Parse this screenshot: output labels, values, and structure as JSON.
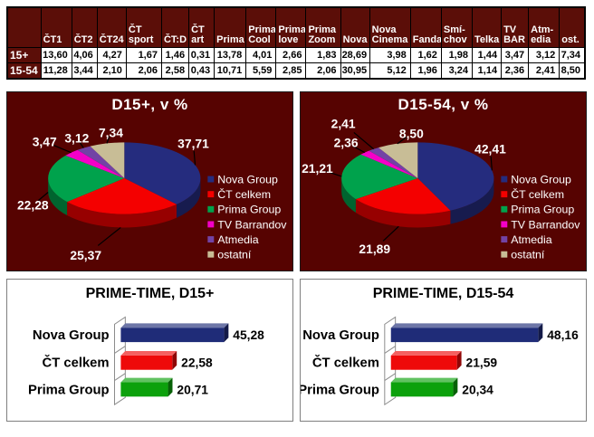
{
  "table": {
    "corner_label": "",
    "columns": [
      "ČT1",
      "ČT2",
      "ČT24",
      "ČT\nsport",
      "ČT:D",
      "ČT\nart",
      "Prima",
      "Prima\nCool",
      "Prima\nlove",
      "Prima\nZoom",
      "Nova",
      "Nova\nCinema",
      "Fanda",
      "Smí-\nchov",
      "Telka",
      "TV\nBAR",
      "Atm-\nedia",
      "ost."
    ],
    "rows": [
      {
        "label": "15+",
        "values": [
          "13,60",
          "4,06",
          "4,27",
          "1,67",
          "1,46",
          "0,31",
          "13,78",
          "4,01",
          "2,66",
          "1,83",
          "28,69",
          "3,98",
          "1,62",
          "1,98",
          "1,44",
          "3,47",
          "3,12",
          "7,34"
        ]
      },
      {
        "label": "15-54",
        "values": [
          "11,28",
          "3,44",
          "2,10",
          "2,06",
          "2,58",
          "0,43",
          "10,71",
          "5,59",
          "2,85",
          "2,06",
          "30,95",
          "5,12",
          "1,96",
          "3,24",
          "1,14",
          "2,36",
          "2,41",
          "8,50"
        ]
      }
    ],
    "colors": {
      "header_bg": "#5B0E08",
      "header_text": "#FFFFFF",
      "cell_bg": "#FFFFFF",
      "cell_text": "#000000",
      "border": "#000000"
    }
  },
  "chart_data": [
    {
      "type": "pie",
      "title": "D15+, v %",
      "legend_position": "right",
      "background": "#560301",
      "labels": [
        "Nova Group",
        "ČT celkem",
        "Prima Group",
        "TV Barrandov",
        "Atmedia",
        "ostatní"
      ],
      "values": [
        37.71,
        25.37,
        22.28,
        3.47,
        3.12,
        7.34
      ],
      "value_labels": [
        "37,71",
        "25,37",
        "22,28",
        "3,47",
        "3,12",
        "7,34"
      ],
      "colors": [
        "#252C7E",
        "#F40000",
        "#00A24C",
        "#F400C8",
        "#7243A5",
        "#C8BD96"
      ],
      "text_color": "#FFFFFF"
    },
    {
      "type": "pie",
      "title": "D15-54, v %",
      "legend_position": "right",
      "background": "#560301",
      "labels": [
        "Nova Group",
        "ČT celkem",
        "Prima Group",
        "TV Barrandov",
        "Atmedia",
        "ostatní"
      ],
      "values": [
        42.41,
        21.89,
        21.21,
        2.36,
        2.41,
        8.5
      ],
      "value_labels": [
        "42,41",
        "21,89",
        "21,21",
        "2,36",
        "2,41",
        "8,50"
      ],
      "colors": [
        "#252C7E",
        "#F40000",
        "#00A24C",
        "#F400C8",
        "#7243A5",
        "#C8BD96"
      ],
      "text_color": "#FFFFFF"
    },
    {
      "type": "bar",
      "title": "PRIME-TIME, D15+",
      "orientation": "horizontal",
      "categories": [
        "Nova Group",
        "ČT celkem",
        "Prima Group"
      ],
      "values": [
        45.28,
        22.58,
        20.71
      ],
      "value_labels": [
        "45,28",
        "22,58",
        "20,71"
      ],
      "colors": [
        "#1F2C78",
        "#EE0A0A",
        "#0CA10C"
      ],
      "xlim": [
        0,
        50
      ],
      "grid": false,
      "legend_position": "none"
    },
    {
      "type": "bar",
      "title": "PRIME-TIME, D15-54",
      "orientation": "horizontal",
      "categories": [
        "Nova Group",
        "ČT celkem",
        "Prima Group"
      ],
      "values": [
        48.16,
        21.59,
        20.34
      ],
      "value_labels": [
        "48,16",
        "21,59",
        "20,34"
      ],
      "colors": [
        "#1F2C78",
        "#EE0A0A",
        "#0CA10C"
      ],
      "xlim": [
        0,
        50
      ],
      "grid": false,
      "legend_position": "none"
    }
  ]
}
